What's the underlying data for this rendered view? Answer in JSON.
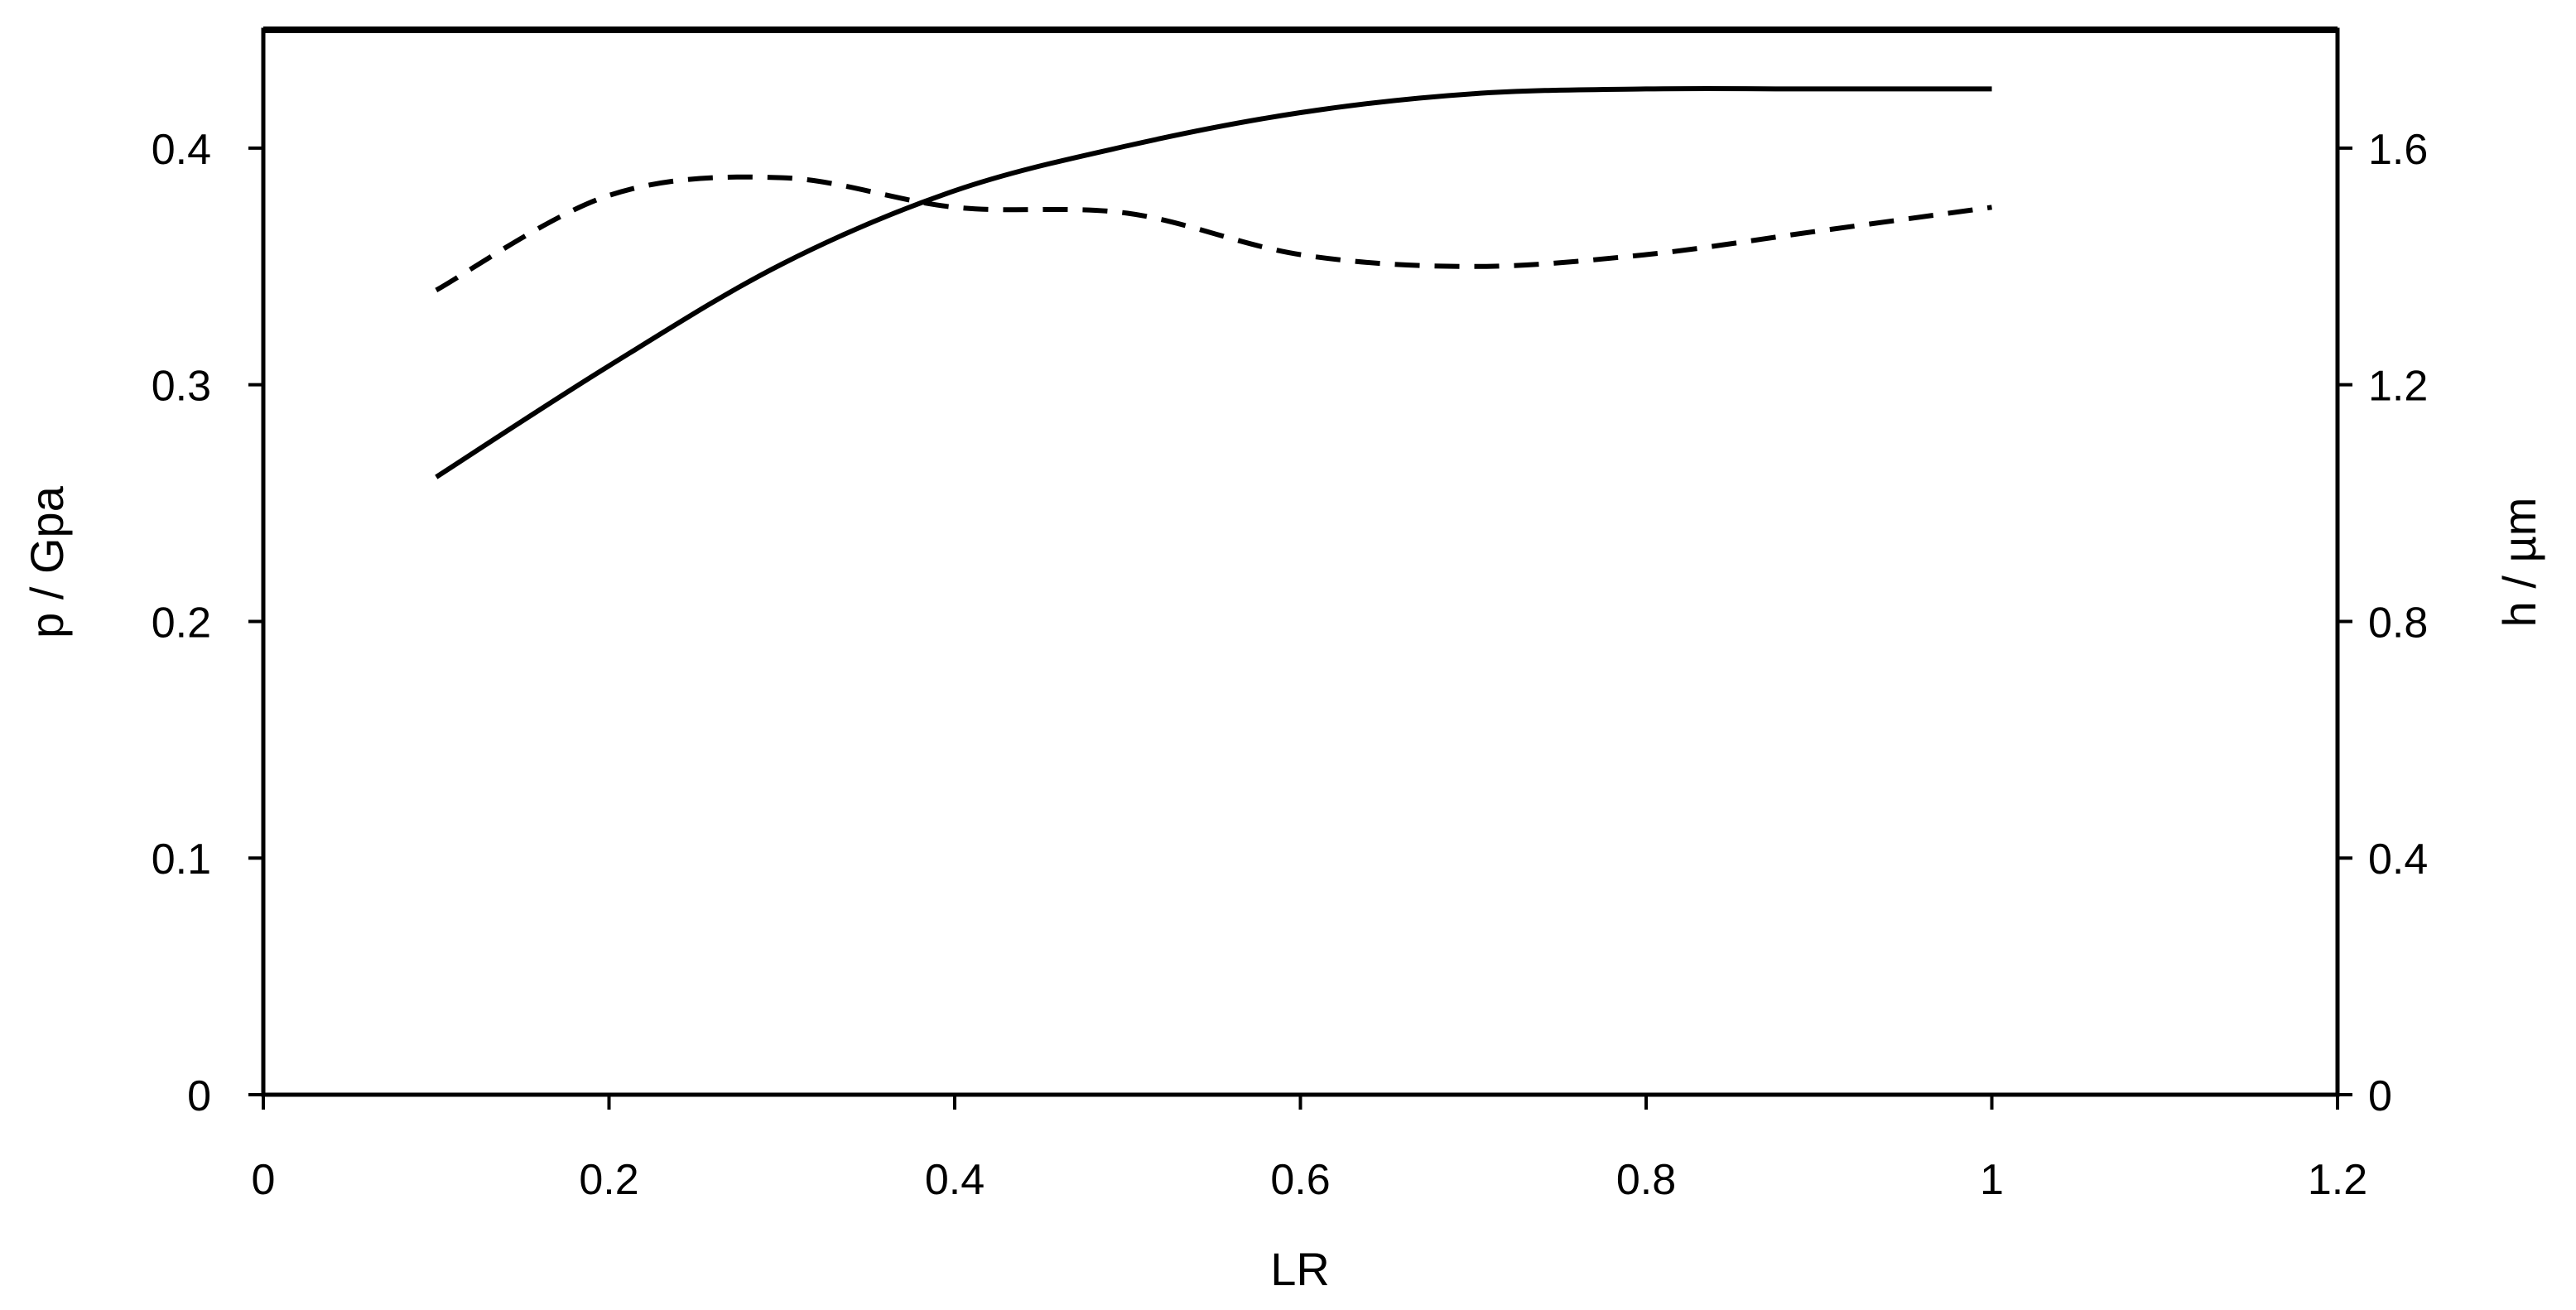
{
  "chart_data": {
    "type": "line",
    "title": "",
    "xlabel": "LR",
    "ylabel": "p / Gpa",
    "y2label": "h / µm",
    "xlim": [
      0,
      1.2
    ],
    "ylim": [
      0,
      0.45
    ],
    "y2lim": [
      0,
      1.8
    ],
    "x_ticks": [
      0,
      0.2,
      0.4,
      0.6,
      0.8,
      1,
      1.2
    ],
    "x_tick_labels": [
      "0",
      "0.2",
      "0.4",
      "0.6",
      "0.8",
      "1",
      "1.2"
    ],
    "y_ticks": [
      0,
      0.1,
      0.2,
      0.3,
      0.4
    ],
    "y_tick_labels": [
      "0",
      "0.1",
      "0.2",
      "0.3",
      "0.4"
    ],
    "y2_ticks": [
      0,
      0.4,
      0.8,
      1.2,
      1.6
    ],
    "y2_tick_labels": [
      "0",
      "0.4",
      "0.8",
      "1.2",
      "1.6"
    ],
    "grid": false,
    "legend": "none",
    "series": [
      {
        "style": "solid",
        "axis": "left",
        "x": [
          0.1,
          0.2,
          0.3,
          0.4,
          0.5,
          0.6,
          0.7,
          0.8,
          0.9,
          1.0
        ],
        "values": [
          0.261,
          0.308,
          0.351,
          0.382,
          0.401,
          0.415,
          0.423,
          0.425,
          0.425,
          0.425
        ]
      },
      {
        "style": "dashed",
        "axis": "right",
        "x": [
          0.1,
          0.2,
          0.3,
          0.4,
          0.5,
          0.6,
          0.7,
          0.8,
          0.9,
          1.0
        ],
        "values": [
          1.36,
          1.52,
          1.55,
          1.5,
          1.49,
          1.42,
          1.4,
          1.42,
          1.46,
          1.5
        ]
      }
    ]
  }
}
